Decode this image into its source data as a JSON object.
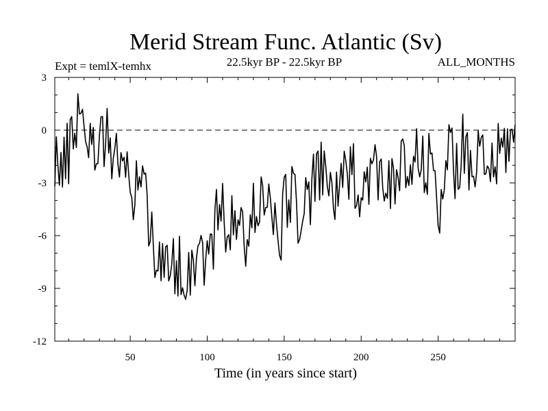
{
  "chart_data": {
    "type": "line",
    "title": "Merid Stream Func. Atlantic (Sv)",
    "subtitle_left": "Expt = temlX-temhx",
    "subtitle_center": "22.5kyr BP - 22.5kyr BP",
    "subtitle_right": "ALL_MONTHS",
    "xlabel": "Time (in years since start)",
    "ylabel": "",
    "xlim": [
      1,
      300
    ],
    "ylim": [
      -12,
      3
    ],
    "xticks": [
      50,
      100,
      150,
      200,
      250
    ],
    "xtick_labels": [
      "50",
      "100",
      "150",
      "200",
      "250"
    ],
    "yticks": [
      3,
      0,
      -3,
      -6,
      -9,
      -12
    ],
    "ytick_labels": [
      "3",
      "0",
      "-3",
      "-6",
      "-9",
      "-12"
    ],
    "reference_line": {
      "y": 0,
      "style": "dashed"
    },
    "series": [
      {
        "name": "Merid Stream Func. Atlantic",
        "color": "#000000",
        "x": [
          1,
          6,
          11,
          16,
          21,
          26,
          31,
          36,
          41,
          46,
          51,
          56,
          61,
          66,
          71,
          76,
          81,
          86,
          91,
          96,
          101,
          106,
          111,
          116,
          121,
          126,
          131,
          136,
          141,
          146,
          151,
          156,
          161,
          166,
          171,
          176,
          181,
          186,
          191,
          196,
          201,
          206,
          211,
          216,
          221,
          226,
          231,
          236,
          241,
          246,
          251,
          256,
          261,
          266,
          271,
          276,
          281,
          286,
          291,
          296,
          300
        ],
        "values": [
          -1.2,
          -2.5,
          -0.8,
          1.2,
          0.5,
          -1.5,
          0.3,
          -0.8,
          -1.0,
          -2.5,
          -3.8,
          -2.0,
          -4.2,
          -6.5,
          -8.2,
          -8.0,
          -7.5,
          -8.2,
          -7.2,
          -6.8,
          -7.5,
          -5.0,
          -4.8,
          -5.6,
          -5.2,
          -6.8,
          -4.2,
          -3.5,
          -4.5,
          -6.5,
          -4.2,
          -3.0,
          -5.5,
          -3.8,
          -2.8,
          -2.5,
          -3.8,
          -3.2,
          -3.0,
          -2.5,
          -3.5,
          -2.0,
          -2.8,
          -2.2,
          -3.8,
          -2.0,
          -3.0,
          -1.5,
          -2.5,
          -1.8,
          -4.0,
          -1.5,
          -2.0,
          -1.0,
          -2.8,
          -1.8,
          -2.0,
          -2.2,
          -1.2,
          -0.5,
          -0.8
        ]
      }
    ]
  }
}
